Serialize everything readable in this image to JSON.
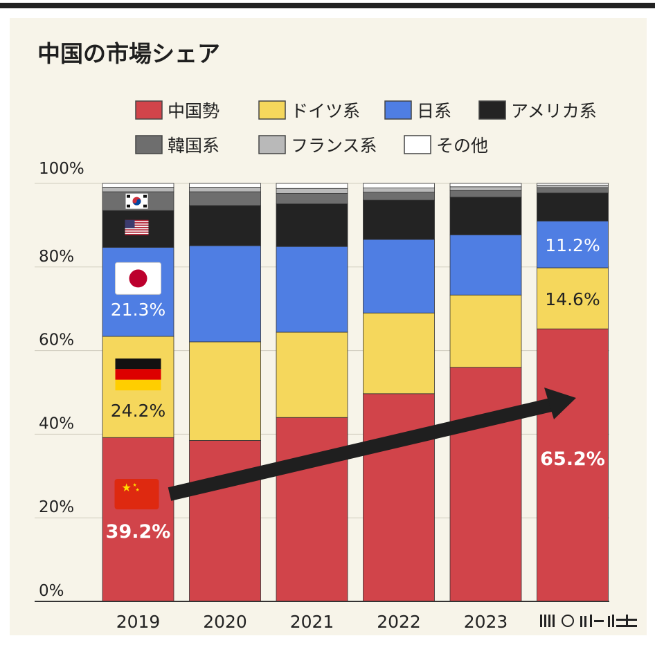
{
  "chart_data": {
    "type": "stacked-bar",
    "title": "中国の市場シェア",
    "categories": [
      "2019",
      "2020",
      "2021",
      "2022",
      "2023",
      ""
    ],
    "ylim": [
      0,
      100
    ],
    "yticks": [
      "0%",
      "20%",
      "40%",
      "60%",
      "80%",
      "100%"
    ],
    "series": [
      {
        "name": "中国勢",
        "color": "#d1444a",
        "values": [
          39.2,
          38.5,
          44.0,
          49.7,
          56.0,
          65.2
        ]
      },
      {
        "name": "ドイツ系",
        "color": "#f5d75c",
        "values": [
          24.2,
          23.6,
          20.4,
          19.3,
          17.3,
          14.6
        ]
      },
      {
        "name": "日系",
        "color": "#4f7ee3",
        "values": [
          21.3,
          23.0,
          20.5,
          17.6,
          14.4,
          11.2
        ]
      },
      {
        "name": "アメリカ系",
        "color": "#232323",
        "values": [
          8.8,
          9.6,
          10.2,
          9.4,
          9.0,
          6.7
        ]
      },
      {
        "name": "韓国系",
        "color": "#6e6e6e",
        "values": [
          4.5,
          3.3,
          2.5,
          1.9,
          1.6,
          1.3
        ]
      },
      {
        "name": "フランス系",
        "color": "#b9b9b9",
        "values": [
          1.1,
          1.1,
          1.2,
          1.0,
          0.9,
          0.6
        ]
      },
      {
        "name": "その他",
        "color": "#ffffff",
        "values": [
          0.9,
          0.9,
          1.2,
          1.1,
          0.8,
          0.4
        ]
      }
    ],
    "data_labels": [
      {
        "series": "中国勢",
        "category": "2019",
        "text": "39.2%"
      },
      {
        "series": "ドイツ系",
        "category": "2019",
        "text": "24.2%"
      },
      {
        "series": "日系",
        "category": "2019",
        "text": "21.3%"
      },
      {
        "series": "中国勢",
        "category": "",
        "text": "65.2%"
      },
      {
        "series": "ドイツ系",
        "category": "",
        "text": "14.6%"
      },
      {
        "series": "日系",
        "category": "",
        "text": "11.2%"
      }
    ],
    "flag_icons": [
      {
        "series": "中国勢",
        "icon": "china-flag-icon"
      },
      {
        "series": "ドイツ系",
        "icon": "germany-flag-icon"
      },
      {
        "series": "日系",
        "icon": "japan-flag-icon"
      },
      {
        "series": "アメリカ系",
        "icon": "usa-flag-icon"
      },
      {
        "series": "韓国系",
        "icon": "korea-flag-icon"
      }
    ],
    "annotation": "trend-arrow-icon",
    "legend_placement": "top",
    "grid": true
  }
}
